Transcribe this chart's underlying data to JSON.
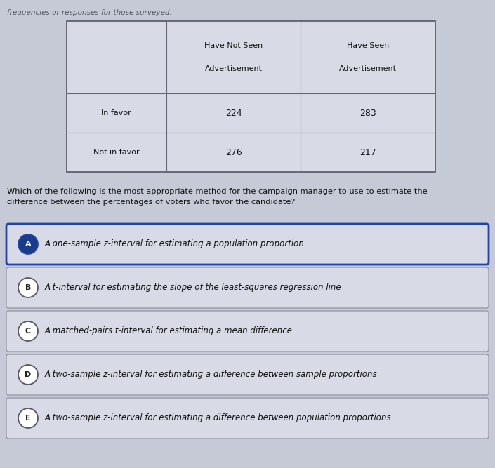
{
  "header_text": "frequencies or responses for those surveyed.",
  "table": {
    "col_headers": [
      "",
      "Have Not Seen\n\nAdvertisement",
      "Have Seen\n\nAdvertisement"
    ],
    "rows": [
      [
        "In favor",
        "224",
        "283"
      ],
      [
        "Not in favor",
        "276",
        "217"
      ]
    ]
  },
  "question": "Which of the following is the most appropriate method for the campaign manager to use to estimate the\ndifference between the percentages of voters who favor the candidate?",
  "options": [
    {
      "label": "A",
      "text": "A one-sample z-interval for estimating a population proportion",
      "selected": true
    },
    {
      "label": "B",
      "text": "A t-interval for estimating the slope of the least-squares regression line",
      "selected": false
    },
    {
      "label": "C",
      "text": "A matched-pairs t-interval for estimating a mean difference",
      "selected": false
    },
    {
      "label": "D",
      "text": "A two-sample z-interval for estimating a difference between sample proportions",
      "selected": false
    },
    {
      "label": "E",
      "text": "A two-sample z-interval for estimating a difference between population proportions",
      "selected": false
    }
  ],
  "bg_color": "#c5cad6",
  "table_bg": "#d8dbe6",
  "option_bg": "#d8dbe6",
  "selected_border": "#2244aa",
  "unselected_border": "#9999aa",
  "text_color": "#111111",
  "selected_label_bg": "#1a3a8a",
  "unselected_label_bg": "#ffffff",
  "fig_w": 7.05,
  "fig_h": 6.67,
  "dpi": 100
}
